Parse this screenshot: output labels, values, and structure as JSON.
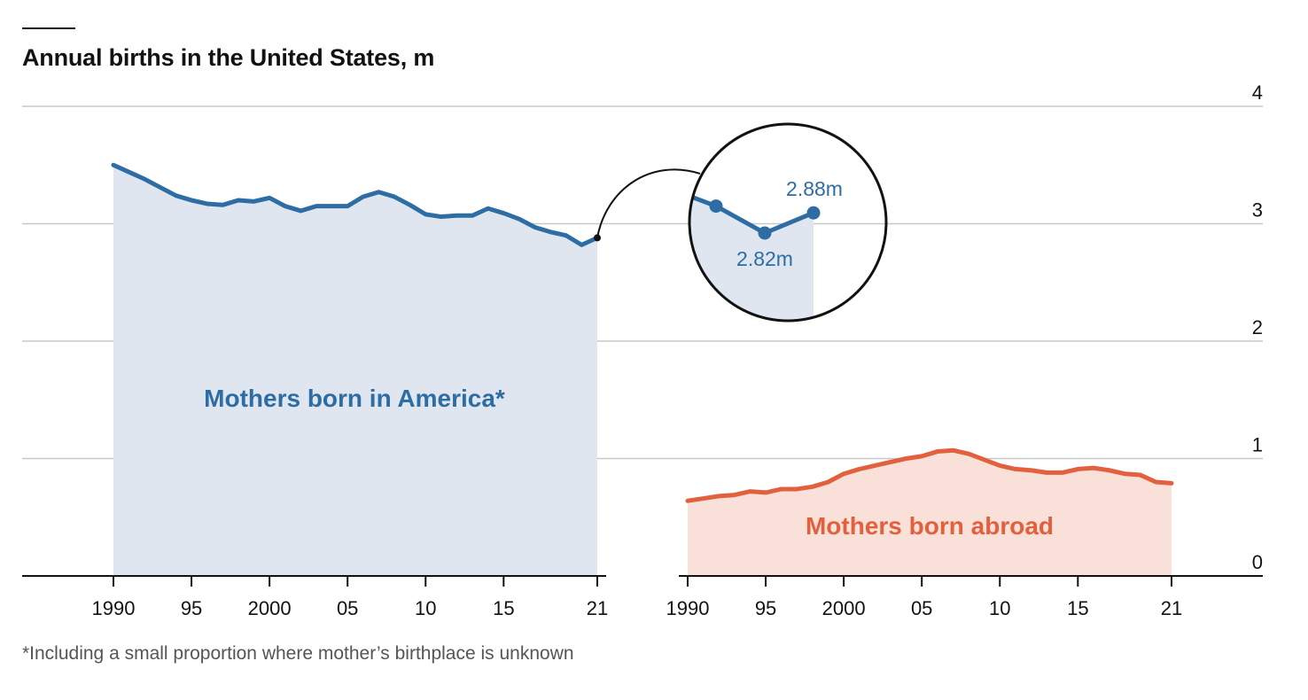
{
  "title": "Annual births in the United States, m",
  "footnote": "*Including a small proportion where mother’s birthplace is unknown",
  "chart_data": [
    {
      "type": "area",
      "title": "Annual births in the United States, m",
      "series": [
        {
          "name": "Mothers born in America*",
          "color": "#2e6da4",
          "fill": "#dfe6f0",
          "x": [
            1990,
            1991,
            1992,
            1993,
            1994,
            1995,
            1996,
            1997,
            1998,
            1999,
            2000,
            2001,
            2002,
            2003,
            2004,
            2005,
            2006,
            2007,
            2008,
            2009,
            2010,
            2011,
            2012,
            2013,
            2014,
            2015,
            2016,
            2017,
            2018,
            2019,
            2020,
            2021
          ],
          "values": [
            3.5,
            3.44,
            3.38,
            3.31,
            3.24,
            3.2,
            3.17,
            3.16,
            3.2,
            3.19,
            3.22,
            3.15,
            3.11,
            3.15,
            3.15,
            3.15,
            3.23,
            3.27,
            3.23,
            3.16,
            3.08,
            3.06,
            3.07,
            3.07,
            3.13,
            3.09,
            3.04,
            2.97,
            2.93,
            2.9,
            2.82,
            2.88
          ]
        }
      ],
      "xlim": [
        1990,
        2021
      ],
      "ylim": [
        0,
        4
      ],
      "x_tick_labels": [
        "1990",
        "95",
        "2000",
        "05",
        "10",
        "15",
        "21"
      ],
      "x_tick_values": [
        1990,
        1995,
        2000,
        2005,
        2010,
        2015,
        2021
      ],
      "callout": {
        "values": [
          "2.82m",
          "2.88m"
        ]
      }
    },
    {
      "type": "area",
      "series": [
        {
          "name": "Mothers born abroad",
          "color": "#e3603e",
          "fill": "#f9e1d9",
          "x": [
            1990,
            1991,
            1992,
            1993,
            1994,
            1995,
            1996,
            1997,
            1998,
            1999,
            2000,
            2001,
            2002,
            2003,
            2004,
            2005,
            2006,
            2007,
            2008,
            2009,
            2010,
            2011,
            2012,
            2013,
            2014,
            2015,
            2016,
            2017,
            2018,
            2019,
            2020,
            2021
          ],
          "values": [
            0.64,
            0.66,
            0.68,
            0.69,
            0.72,
            0.71,
            0.74,
            0.74,
            0.76,
            0.8,
            0.87,
            0.91,
            0.94,
            0.97,
            1.0,
            1.02,
            1.06,
            1.07,
            1.04,
            0.99,
            0.94,
            0.91,
            0.9,
            0.88,
            0.88,
            0.91,
            0.92,
            0.9,
            0.87,
            0.86,
            0.8,
            0.79
          ]
        }
      ],
      "xlim": [
        1990,
        2021
      ],
      "ylim": [
        0,
        4
      ],
      "x_tick_labels": [
        "1990",
        "95",
        "2000",
        "05",
        "10",
        "15",
        "21"
      ],
      "x_tick_values": [
        1990,
        1995,
        2000,
        2005,
        2010,
        2015,
        2021
      ]
    }
  ],
  "y_axis": {
    "ticks": [
      0,
      1,
      2,
      3,
      4
    ],
    "tick_labels": [
      "0",
      "1",
      "2",
      "3",
      "4"
    ],
    "position": "right",
    "grid": true
  },
  "colors": {
    "america": "#2e6da4",
    "america_fill": "#dfe6f0",
    "abroad": "#e3603e",
    "abroad_fill": "#f9e1d9",
    "grid": "#c8c8c8",
    "axis": "#121212"
  }
}
